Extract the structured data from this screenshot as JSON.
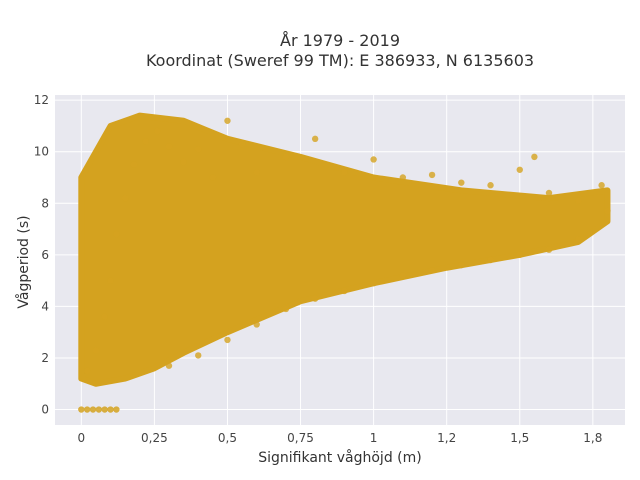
{
  "chart_data": {
    "type": "scatter",
    "title_line1": "År 1979 - 2019",
    "title_line2": "Koordinat (Sweref 99 TM): E 386933, N 6135603",
    "xlabel": "Signifikant våghöjd (m)",
    "ylabel": "Vågperiod (s)",
    "xlim": [
      -0.09,
      1.86
    ],
    "ylim": [
      -0.6,
      12.2
    ],
    "x_ticks": [
      0,
      0.25,
      0.5,
      0.75,
      1,
      1.25,
      1.5,
      1.75
    ],
    "x_tick_labels": [
      "0",
      "0,25",
      "0,5",
      "0,75",
      "1",
      "1,2",
      "1,5",
      "1,8"
    ],
    "y_ticks": [
      0,
      2,
      4,
      6,
      8,
      10,
      12
    ],
    "y_tick_labels": [
      "0",
      "2",
      "4",
      "6",
      "8",
      "10",
      "12"
    ],
    "grid": true,
    "marker_color": "#D4A21F",
    "background_color": "#E8E8EF",
    "points_outline": [
      [
        0.0,
        1.2
      ],
      [
        0.05,
        1.0
      ],
      [
        0.15,
        1.2
      ],
      [
        0.25,
        1.6
      ],
      [
        0.35,
        2.2
      ],
      [
        0.5,
        3.0
      ],
      [
        0.75,
        4.2
      ],
      [
        1.0,
        4.9
      ],
      [
        1.25,
        5.5
      ],
      [
        1.5,
        6.0
      ],
      [
        1.7,
        6.5
      ],
      [
        1.8,
        7.3
      ],
      [
        1.8,
        8.5
      ],
      [
        1.6,
        8.2
      ],
      [
        1.3,
        8.5
      ],
      [
        1.0,
        9.0
      ],
      [
        0.75,
        9.8
      ],
      [
        0.5,
        10.5
      ],
      [
        0.35,
        11.2
      ],
      [
        0.2,
        11.4
      ],
      [
        0.1,
        11.0
      ],
      [
        0.0,
        9.0
      ],
      [
        0.0,
        5.0
      ]
    ],
    "zero_points": [
      0.0,
      0.02,
      0.04,
      0.06,
      0.08,
      0.1,
      0.12
    ],
    "scatter_sample": [
      [
        0.02,
        1.5
      ],
      [
        0.05,
        2.3
      ],
      [
        0.08,
        3.6
      ],
      [
        0.1,
        5.0
      ],
      [
        0.12,
        6.8
      ],
      [
        0.15,
        8.2
      ],
      [
        0.18,
        9.5
      ],
      [
        0.22,
        10.4
      ],
      [
        0.26,
        10.8
      ],
      [
        0.3,
        10.2
      ],
      [
        0.35,
        9.6
      ],
      [
        0.4,
        10.1
      ],
      [
        0.45,
        9.0
      ],
      [
        0.5,
        11.2
      ],
      [
        0.55,
        10.3
      ],
      [
        0.6,
        9.2
      ],
      [
        0.7,
        9.8
      ],
      [
        0.8,
        10.5
      ],
      [
        0.9,
        9.2
      ],
      [
        1.0,
        9.7
      ],
      [
        1.1,
        9.0
      ],
      [
        1.2,
        9.1
      ],
      [
        1.3,
        8.8
      ],
      [
        1.4,
        8.7
      ],
      [
        1.5,
        9.3
      ],
      [
        1.55,
        9.8
      ],
      [
        1.6,
        8.4
      ],
      [
        1.7,
        8.1
      ],
      [
        1.78,
        8.7
      ],
      [
        1.8,
        7.7
      ],
      [
        0.3,
        1.7
      ],
      [
        0.4,
        2.1
      ],
      [
        0.5,
        2.7
      ],
      [
        0.6,
        3.3
      ],
      [
        0.7,
        3.9
      ],
      [
        0.8,
        4.3
      ],
      [
        0.9,
        4.6
      ],
      [
        1.0,
        4.9
      ],
      [
        1.1,
        5.2
      ],
      [
        1.2,
        5.4
      ],
      [
        1.3,
        5.6
      ],
      [
        1.4,
        5.8
      ],
      [
        1.5,
        6.0
      ],
      [
        1.6,
        6.2
      ],
      [
        1.7,
        6.6
      ]
    ]
  }
}
